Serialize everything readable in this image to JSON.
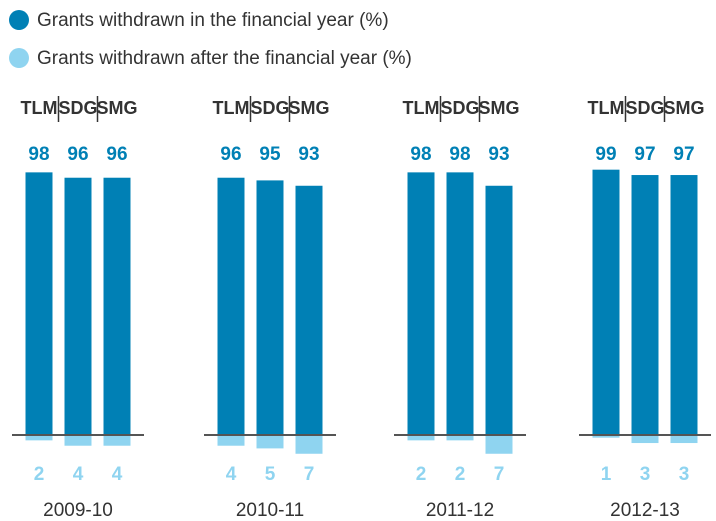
{
  "chart_data": {
    "type": "bar",
    "groups": [
      "2009-10",
      "2010-11",
      "2011-12",
      "2012-13"
    ],
    "categories": [
      "TLM",
      "SDG",
      "SMG"
    ],
    "series": [
      {
        "name": "Grants withdrawn in the financial year (%)",
        "color": "#0080b5",
        "direction": "up",
        "values": [
          [
            98,
            96,
            96
          ],
          [
            96,
            95,
            93
          ],
          [
            98,
            98,
            93
          ],
          [
            99,
            97,
            97
          ]
        ]
      },
      {
        "name": "Grants withdrawn after the financial year (%)",
        "color": "#8fd4f0",
        "direction": "down",
        "values": [
          [
            2,
            4,
            4
          ],
          [
            4,
            5,
            7
          ],
          [
            2,
            2,
            7
          ],
          [
            1,
            3,
            3
          ]
        ]
      }
    ]
  }
}
